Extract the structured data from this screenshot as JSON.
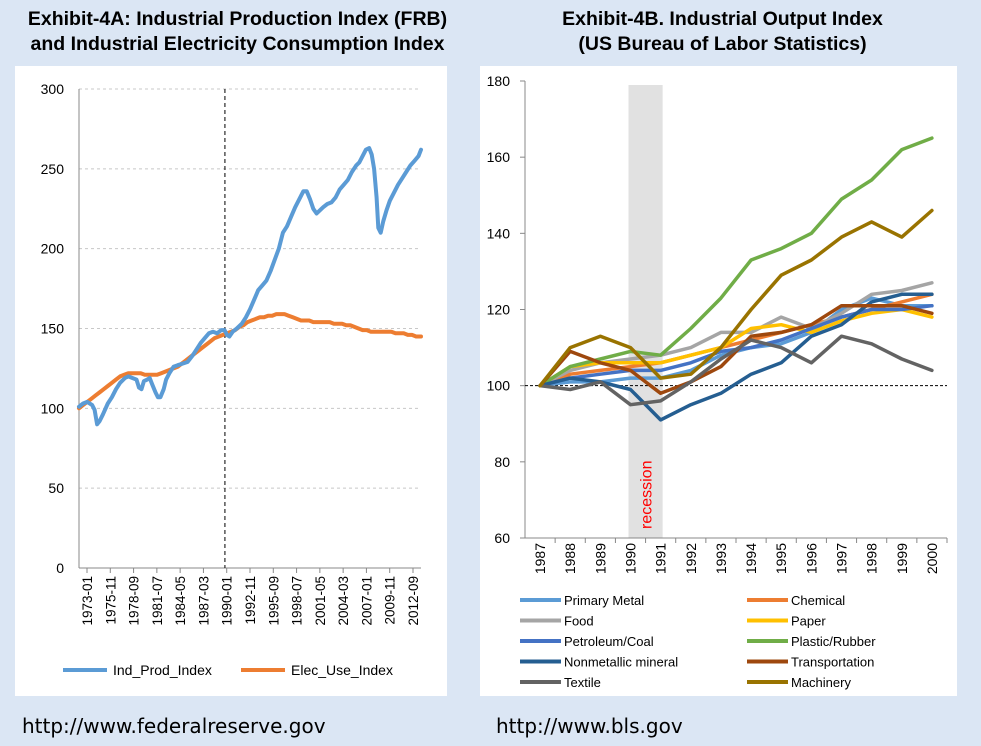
{
  "left_chart": {
    "title_line1": "Exhibit-4A:  Industrial Production Index (FRB)",
    "title_line2": "and Industrial Electricity Consumption Index",
    "source": "http://www.federalreserve.gov"
  },
  "right_chart": {
    "title_line1": "Exhibit-4B. Industrial Output Index",
    "title_line2": "(US Bureau of Labor Statistics)",
    "source": "http://www.bls.gov",
    "recession_label": "recession"
  },
  "chart_data": [
    {
      "type": "line",
      "title": "Exhibit-4A:  Industrial Production Index (FRB) and Industrial Electricity Consumption Index",
      "ylim": [
        0,
        300
      ],
      "yticks": [
        0,
        50,
        100,
        150,
        200,
        250,
        300
      ],
      "x_ticklabels": [
        "1973-01",
        "1975-11",
        "1978-09",
        "1981-07",
        "1984-05",
        "1987-03",
        "1990-01",
        "1992-11",
        "1995-09",
        "1998-07",
        "2001-05",
        "2004-03",
        "2007-01",
        "2009-11",
        "2012-09"
      ],
      "x_range_years": [
        1973.0,
        2014.6
      ],
      "vline_year": 1990.75,
      "grid": "horizontal dashed",
      "legend_position": "bottom",
      "series": [
        {
          "name": "Ind_Prod_Index",
          "color": "#5b9bd5",
          "x": [
            1973.0,
            1973.5,
            1974.0,
            1974.6,
            1974.9,
            1975.2,
            1975.5,
            1975.9,
            1976.5,
            1977.0,
            1977.5,
            1978.0,
            1978.6,
            1979.0,
            1979.5,
            1980.0,
            1980.3,
            1980.6,
            1980.9,
            1981.3,
            1981.6,
            1981.9,
            1982.3,
            1982.6,
            1982.9,
            1983.3,
            1983.6,
            1984.0,
            1984.5,
            1985.0,
            1985.6,
            1986.2,
            1986.8,
            1987.3,
            1987.8,
            1988.3,
            1988.8,
            1989.3,
            1989.8,
            1990.3,
            1990.7,
            1991.0,
            1991.3,
            1991.7,
            1992.2,
            1992.8,
            1993.3,
            1993.8,
            1994.3,
            1994.8,
            1995.3,
            1995.8,
            1996.3,
            1996.8,
            1997.3,
            1997.8,
            1998.3,
            1998.8,
            1999.3,
            1999.8,
            2000.3,
            2000.7,
            2001.1,
            2001.5,
            2001.9,
            2002.3,
            2002.7,
            2003.2,
            2003.7,
            2004.2,
            2004.7,
            2005.2,
            2005.7,
            2006.2,
            2006.7,
            2007.1,
            2007.5,
            2007.9,
            2008.3,
            2008.6,
            2008.9,
            2009.2,
            2009.4,
            2009.7,
            2010.0,
            2010.4,
            2010.8,
            2011.3,
            2011.8,
            2012.3,
            2012.8,
            2013.3,
            2013.8,
            2014.3,
            2014.6
          ],
          "y": [
            101,
            103,
            104,
            102,
            99,
            90,
            92,
            96,
            103,
            107,
            112,
            116,
            119,
            120,
            119,
            118,
            113,
            112,
            117,
            118,
            119,
            115,
            110,
            107,
            107,
            112,
            118,
            122,
            126,
            127,
            128,
            129,
            133,
            137,
            141,
            144,
            147,
            148,
            147,
            149,
            149,
            146,
            145,
            148,
            150,
            153,
            157,
            162,
            168,
            174,
            177,
            180,
            186,
            193,
            200,
            210,
            214,
            220,
            226,
            231,
            236,
            236,
            231,
            225,
            222,
            224,
            226,
            228,
            229,
            232,
            237,
            240,
            243,
            248,
            252,
            254,
            258,
            262,
            263,
            259,
            250,
            232,
            213,
            210,
            217,
            224,
            230,
            235,
            240,
            244,
            248,
            252,
            255,
            258,
            262
          ]
        },
        {
          "name": "Elec_Use_Index",
          "color": "#ed7d31",
          "x": [
            1973.0,
            1973.5,
            1974.0,
            1974.5,
            1975.0,
            1975.5,
            1976.0,
            1976.5,
            1977.0,
            1977.5,
            1978.0,
            1978.5,
            1979.0,
            1979.5,
            1980.0,
            1980.5,
            1981.0,
            1981.5,
            1982.0,
            1982.5,
            1983.0,
            1983.5,
            1984.0,
            1984.5,
            1985.0,
            1985.5,
            1986.0,
            1986.5,
            1987.0,
            1987.5,
            1988.0,
            1988.5,
            1989.0,
            1989.5,
            1990.0,
            1990.5,
            1991.0,
            1991.5,
            1992.0,
            1992.5,
            1993.0,
            1993.5,
            1994.0,
            1994.5,
            1995.0,
            1995.5,
            1996.0,
            1996.5,
            1997.0,
            1997.5,
            1998.0,
            1998.5,
            1999.0,
            1999.5,
            2000.0,
            2000.5,
            2001.0,
            2001.5,
            2002.0,
            2002.5,
            2003.0,
            2003.5,
            2004.0,
            2004.5,
            2005.0,
            2005.5,
            2006.0,
            2006.5,
            2007.0,
            2007.5,
            2008.0,
            2008.5,
            2009.0,
            2009.5,
            2010.0,
            2010.5,
            2011.0,
            2011.5,
            2012.0,
            2012.5,
            2013.0,
            2013.5,
            2014.0,
            2014.6
          ],
          "y": [
            100,
            102,
            104,
            106,
            108,
            110,
            112,
            114,
            116,
            118,
            120,
            121,
            122,
            122,
            122,
            122,
            121,
            121,
            121,
            121,
            122,
            123,
            124,
            125,
            126,
            128,
            130,
            132,
            134,
            136,
            138,
            140,
            142,
            144,
            145,
            146,
            147,
            148,
            149,
            151,
            152,
            154,
            155,
            156,
            157,
            157,
            158,
            158,
            159,
            159,
            159,
            158,
            157,
            156,
            155,
            155,
            155,
            154,
            154,
            154,
            154,
            154,
            153,
            153,
            153,
            152,
            152,
            151,
            150,
            149,
            149,
            148,
            148,
            148,
            148,
            148,
            148,
            147,
            147,
            147,
            146,
            146,
            145,
            145
          ]
        }
      ]
    },
    {
      "type": "line",
      "title": "Exhibit-4B. Industrial Output Index (US Bureau of Labor Statistics)",
      "categories": [
        "1987",
        "1988",
        "1989",
        "1990",
        "1991",
        "1992",
        "1993",
        "1994",
        "1995",
        "1996",
        "1997",
        "1998",
        "1999",
        "2000"
      ],
      "ylim": [
        60,
        180
      ],
      "yticks": [
        60,
        80,
        100,
        120,
        140,
        160,
        180
      ],
      "reference_line": 100,
      "recession_shade": [
        "1990",
        "1991"
      ],
      "grid": "none",
      "legend_position": "bottom",
      "series": [
        {
          "name": "Primary Metal",
          "color": "#5b9bd5",
          "values": [
            100,
            101,
            101,
            102,
            102,
            104,
            108,
            110,
            111,
            114,
            120,
            123,
            121,
            121
          ]
        },
        {
          "name": "Chemical",
          "color": "#ed7d31",
          "values": [
            100,
            103,
            104,
            105,
            106,
            108,
            110,
            112,
            114,
            116,
            118,
            120,
            122,
            124
          ]
        },
        {
          "name": "Food",
          "color": "#a5a5a5",
          "values": [
            100,
            104,
            106,
            107,
            108,
            110,
            114,
            114,
            118,
            115,
            119,
            124,
            125,
            127
          ]
        },
        {
          "name": "Paper",
          "color": "#ffc000",
          "values": [
            100,
            105,
            106,
            106,
            106,
            108,
            110,
            115,
            116,
            114,
            117,
            119,
            120,
            118
          ]
        },
        {
          "name": "Petroleum/Coal",
          "color": "#4472c4",
          "values": [
            100,
            102,
            103,
            104,
            104,
            106,
            109,
            110,
            112,
            115,
            118,
            120,
            120,
            121
          ]
        },
        {
          "name": "Plastic/Rubber",
          "color": "#70ad47",
          "values": [
            100,
            105,
            107,
            109,
            108,
            115,
            123,
            133,
            136,
            140,
            149,
            154,
            162,
            165
          ]
        },
        {
          "name": "Nonmetallic mineral",
          "color": "#255e91",
          "values": [
            100,
            102,
            101,
            99,
            91,
            95,
            98,
            103,
            106,
            113,
            116,
            122,
            124,
            124
          ]
        },
        {
          "name": "Transportation",
          "color": "#9e480e",
          "values": [
            100,
            109,
            106,
            104,
            98,
            101,
            105,
            113,
            114,
            116,
            121,
            121,
            121,
            119
          ]
        },
        {
          "name": "Textile",
          "color": "#636363",
          "values": [
            100,
            99,
            101,
            95,
            96,
            101,
            107,
            112,
            110,
            106,
            113,
            111,
            107,
            104
          ]
        },
        {
          "name": "Machinery",
          "color": "#997300",
          "values": [
            100,
            110,
            113,
            110,
            102,
            103,
            110,
            120,
            129,
            133,
            139,
            143,
            139,
            146
          ]
        }
      ]
    }
  ]
}
